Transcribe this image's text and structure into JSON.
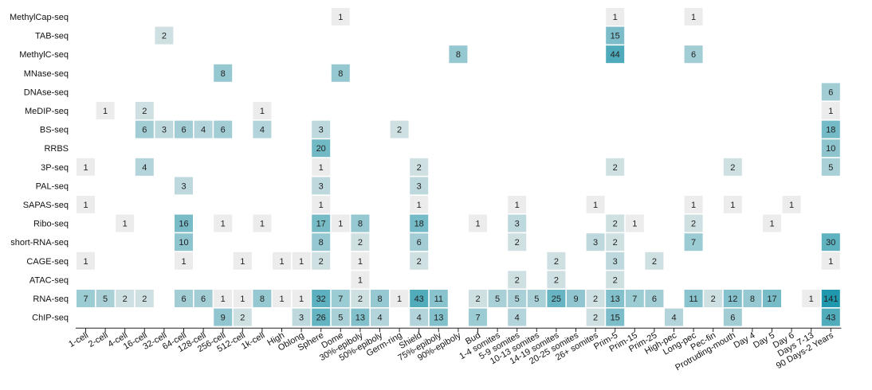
{
  "chart_data": {
    "type": "heatmap",
    "title": "",
    "xlabel": "",
    "ylabel": "",
    "colors": {
      "low": "#ececec",
      "high": "#1f97ac",
      "text": "#222222"
    },
    "rows": [
      "MethylCap-seq",
      "TAB-seq",
      "MethylC-seq",
      "MNase-seq",
      "DNAse-seq",
      "MeDIP-seq",
      "BS-seq",
      "RRBS",
      "3P-seq",
      "PAL-seq",
      "SAPAS-seq",
      "Ribo-seq",
      "short-RNA-seq",
      "CAGE-seq",
      "ATAC-seq",
      "RNA-seq",
      "ChIP-seq"
    ],
    "columns": [
      "1-cell",
      "2-cell",
      "4-cell",
      "16-cell",
      "32-cell",
      "64-cell",
      "128-cell",
      "256-cell",
      "512-cell",
      "1k-cell",
      "High",
      "Oblong",
      "Sphere",
      "Dome",
      "30%-epiboly",
      "50%-epiboly",
      "Germ-ring",
      "Shield",
      "75%-epiboly",
      "90%-epiboly",
      "Bud",
      "1-4 somites",
      "5-9 somites",
      "10-13 somites",
      "14-19 somites",
      "20-25 somites",
      "26+ somites",
      "Prim-5",
      "Prim-15",
      "Prim-25",
      "High-pec",
      "Long-pec",
      "Pec-fin",
      "Protruding-mouth",
      "Day 4",
      "Day 5",
      "Day 6",
      "Days 7-13",
      "90 Days-2 Years"
    ],
    "cells": [
      {
        "row": "MethylCap-seq",
        "col": "Dome",
        "value": 1
      },
      {
        "row": "MethylCap-seq",
        "col": "Prim-5",
        "value": 1
      },
      {
        "row": "MethylCap-seq",
        "col": "Long-pec",
        "value": 1
      },
      {
        "row": "TAB-seq",
        "col": "32-cell",
        "value": 2
      },
      {
        "row": "TAB-seq",
        "col": "Prim-5",
        "value": 15
      },
      {
        "row": "MethylC-seq",
        "col": "90%-epiboly",
        "value": 8
      },
      {
        "row": "MethylC-seq",
        "col": "Prim-5",
        "value": 44
      },
      {
        "row": "MethylC-seq",
        "col": "Long-pec",
        "value": 6
      },
      {
        "row": "MNase-seq",
        "col": "256-cell",
        "value": 8
      },
      {
        "row": "MNase-seq",
        "col": "Dome",
        "value": 8
      },
      {
        "row": "DNAse-seq",
        "col": "90 Days-2 Years",
        "value": 6
      },
      {
        "row": "MeDIP-seq",
        "col": "2-cell",
        "value": 1
      },
      {
        "row": "MeDIP-seq",
        "col": "16-cell",
        "value": 2
      },
      {
        "row": "MeDIP-seq",
        "col": "1k-cell",
        "value": 1
      },
      {
        "row": "MeDIP-seq",
        "col": "90 Days-2 Years",
        "value": 1
      },
      {
        "row": "BS-seq",
        "col": "16-cell",
        "value": 6
      },
      {
        "row": "BS-seq",
        "col": "32-cell",
        "value": 3
      },
      {
        "row": "BS-seq",
        "col": "64-cell",
        "value": 6
      },
      {
        "row": "BS-seq",
        "col": "128-cell",
        "value": 4
      },
      {
        "row": "BS-seq",
        "col": "256-cell",
        "value": 6
      },
      {
        "row": "BS-seq",
        "col": "1k-cell",
        "value": 4
      },
      {
        "row": "BS-seq",
        "col": "Sphere",
        "value": 3
      },
      {
        "row": "BS-seq",
        "col": "Germ-ring",
        "value": 2
      },
      {
        "row": "BS-seq",
        "col": "90 Days-2 Years",
        "value": 18
      },
      {
        "row": "RRBS",
        "col": "Sphere",
        "value": 20
      },
      {
        "row": "RRBS",
        "col": "90 Days-2 Years",
        "value": 10
      },
      {
        "row": "3P-seq",
        "col": "1-cell",
        "value": 1
      },
      {
        "row": "3P-seq",
        "col": "16-cell",
        "value": 4
      },
      {
        "row": "3P-seq",
        "col": "Sphere",
        "value": 1
      },
      {
        "row": "3P-seq",
        "col": "Shield",
        "value": 2
      },
      {
        "row": "3P-seq",
        "col": "Prim-5",
        "value": 2
      },
      {
        "row": "3P-seq",
        "col": "Protruding-mouth",
        "value": 2
      },
      {
        "row": "3P-seq",
        "col": "90 Days-2 Years",
        "value": 5
      },
      {
        "row": "PAL-seq",
        "col": "64-cell",
        "value": 3
      },
      {
        "row": "PAL-seq",
        "col": "Sphere",
        "value": 3
      },
      {
        "row": "PAL-seq",
        "col": "Shield",
        "value": 3
      },
      {
        "row": "SAPAS-seq",
        "col": "1-cell",
        "value": 1
      },
      {
        "row": "SAPAS-seq",
        "col": "Sphere",
        "value": 1
      },
      {
        "row": "SAPAS-seq",
        "col": "Shield",
        "value": 1
      },
      {
        "row": "SAPAS-seq",
        "col": "5-9 somites",
        "value": 1
      },
      {
        "row": "SAPAS-seq",
        "col": "26+ somites",
        "value": 1
      },
      {
        "row": "SAPAS-seq",
        "col": "Long-pec",
        "value": 1
      },
      {
        "row": "SAPAS-seq",
        "col": "Protruding-mouth",
        "value": 1
      },
      {
        "row": "SAPAS-seq",
        "col": "Day 6",
        "value": 1
      },
      {
        "row": "Ribo-seq",
        "col": "4-cell",
        "value": 1
      },
      {
        "row": "Ribo-seq",
        "col": "64-cell",
        "value": 16
      },
      {
        "row": "Ribo-seq",
        "col": "256-cell",
        "value": 1
      },
      {
        "row": "Ribo-seq",
        "col": "1k-cell",
        "value": 1
      },
      {
        "row": "Ribo-seq",
        "col": "Sphere",
        "value": 17
      },
      {
        "row": "Ribo-seq",
        "col": "Dome",
        "value": 1
      },
      {
        "row": "Ribo-seq",
        "col": "30%-epiboly",
        "value": 8
      },
      {
        "row": "Ribo-seq",
        "col": "Shield",
        "value": 18
      },
      {
        "row": "Ribo-seq",
        "col": "Bud",
        "value": 1
      },
      {
        "row": "Ribo-seq",
        "col": "5-9 somites",
        "value": 3
      },
      {
        "row": "Ribo-seq",
        "col": "Prim-5",
        "value": 2
      },
      {
        "row": "Ribo-seq",
        "col": "Prim-15",
        "value": 1
      },
      {
        "row": "Ribo-seq",
        "col": "Long-pec",
        "value": 2
      },
      {
        "row": "Ribo-seq",
        "col": "Day 5",
        "value": 1
      },
      {
        "row": "short-RNA-seq",
        "col": "64-cell",
        "value": 10
      },
      {
        "row": "short-RNA-seq",
        "col": "Sphere",
        "value": 8
      },
      {
        "row": "short-RNA-seq",
        "col": "30%-epiboly",
        "value": 2
      },
      {
        "row": "short-RNA-seq",
        "col": "Shield",
        "value": 6
      },
      {
        "row": "short-RNA-seq",
        "col": "5-9 somites",
        "value": 2
      },
      {
        "row": "short-RNA-seq",
        "col": "26+ somites",
        "value": 3
      },
      {
        "row": "short-RNA-seq",
        "col": "Prim-5",
        "value": 2
      },
      {
        "row": "short-RNA-seq",
        "col": "Long-pec",
        "value": 7
      },
      {
        "row": "short-RNA-seq",
        "col": "90 Days-2 Years",
        "value": 30
      },
      {
        "row": "CAGE-seq",
        "col": "1-cell",
        "value": 1
      },
      {
        "row": "CAGE-seq",
        "col": "64-cell",
        "value": 1
      },
      {
        "row": "CAGE-seq",
        "col": "512-cell",
        "value": 1
      },
      {
        "row": "CAGE-seq",
        "col": "High",
        "value": 1
      },
      {
        "row": "CAGE-seq",
        "col": "Oblong",
        "value": 1
      },
      {
        "row": "CAGE-seq",
        "col": "Sphere",
        "value": 2
      },
      {
        "row": "CAGE-seq",
        "col": "30%-epiboly",
        "value": 1
      },
      {
        "row": "CAGE-seq",
        "col": "Shield",
        "value": 2
      },
      {
        "row": "CAGE-seq",
        "col": "14-19 somites",
        "value": 2
      },
      {
        "row": "CAGE-seq",
        "col": "Prim-5",
        "value": 3
      },
      {
        "row": "CAGE-seq",
        "col": "Prim-25",
        "value": 2
      },
      {
        "row": "CAGE-seq",
        "col": "90 Days-2 Years",
        "value": 1
      },
      {
        "row": "ATAC-seq",
        "col": "30%-epiboly",
        "value": 1
      },
      {
        "row": "ATAC-seq",
        "col": "5-9 somites",
        "value": 2
      },
      {
        "row": "ATAC-seq",
        "col": "14-19 somites",
        "value": 2
      },
      {
        "row": "ATAC-seq",
        "col": "Prim-5",
        "value": 2
      },
      {
        "row": "RNA-seq",
        "col": "1-cell",
        "value": 7
      },
      {
        "row": "RNA-seq",
        "col": "2-cell",
        "value": 5
      },
      {
        "row": "RNA-seq",
        "col": "4-cell",
        "value": 2
      },
      {
        "row": "RNA-seq",
        "col": "16-cell",
        "value": 2
      },
      {
        "row": "RNA-seq",
        "col": "64-cell",
        "value": 6
      },
      {
        "row": "RNA-seq",
        "col": "128-cell",
        "value": 6
      },
      {
        "row": "RNA-seq",
        "col": "256-cell",
        "value": 1
      },
      {
        "row": "RNA-seq",
        "col": "512-cell",
        "value": 1
      },
      {
        "row": "RNA-seq",
        "col": "1k-cell",
        "value": 8
      },
      {
        "row": "RNA-seq",
        "col": "High",
        "value": 1
      },
      {
        "row": "RNA-seq",
        "col": "Oblong",
        "value": 1
      },
      {
        "row": "RNA-seq",
        "col": "Sphere",
        "value": 32
      },
      {
        "row": "RNA-seq",
        "col": "Dome",
        "value": 7
      },
      {
        "row": "RNA-seq",
        "col": "30%-epiboly",
        "value": 2
      },
      {
        "row": "RNA-seq",
        "col": "50%-epiboly",
        "value": 8
      },
      {
        "row": "RNA-seq",
        "col": "Germ-ring",
        "value": 1
      },
      {
        "row": "RNA-seq",
        "col": "Shield",
        "value": 43
      },
      {
        "row": "RNA-seq",
        "col": "75%-epiboly",
        "value": 11
      },
      {
        "row": "RNA-seq",
        "col": "Bud",
        "value": 2
      },
      {
        "row": "RNA-seq",
        "col": "1-4 somites",
        "value": 5
      },
      {
        "row": "RNA-seq",
        "col": "5-9 somites",
        "value": 5
      },
      {
        "row": "RNA-seq",
        "col": "10-13 somites",
        "value": 5
      },
      {
        "row": "RNA-seq",
        "col": "14-19 somites",
        "value": 25
      },
      {
        "row": "RNA-seq",
        "col": "20-25 somites",
        "value": 9
      },
      {
        "row": "RNA-seq",
        "col": "26+ somites",
        "value": 2
      },
      {
        "row": "RNA-seq",
        "col": "Prim-5",
        "value": 13
      },
      {
        "row": "RNA-seq",
        "col": "Prim-15",
        "value": 7
      },
      {
        "row": "RNA-seq",
        "col": "Prim-25",
        "value": 6
      },
      {
        "row": "RNA-seq",
        "col": "Long-pec",
        "value": 11
      },
      {
        "row": "RNA-seq",
        "col": "Pec-fin",
        "value": 2
      },
      {
        "row": "RNA-seq",
        "col": "Protruding-mouth",
        "value": 12
      },
      {
        "row": "RNA-seq",
        "col": "Day 4",
        "value": 8
      },
      {
        "row": "RNA-seq",
        "col": "Day 5",
        "value": 17
      },
      {
        "row": "RNA-seq",
        "col": "Days 7-13",
        "value": 1
      },
      {
        "row": "RNA-seq",
        "col": "90 Days-2 Years",
        "value": 141
      },
      {
        "row": "ChIP-seq",
        "col": "256-cell",
        "value": 9
      },
      {
        "row": "ChIP-seq",
        "col": "512-cell",
        "value": 2
      },
      {
        "row": "ChIP-seq",
        "col": "Oblong",
        "value": 3
      },
      {
        "row": "ChIP-seq",
        "col": "Sphere",
        "value": 26
      },
      {
        "row": "ChIP-seq",
        "col": "Dome",
        "value": 5
      },
      {
        "row": "ChIP-seq",
        "col": "30%-epiboly",
        "value": 13
      },
      {
        "row": "ChIP-seq",
        "col": "50%-epiboly",
        "value": 4
      },
      {
        "row": "ChIP-seq",
        "col": "Shield",
        "value": 4
      },
      {
        "row": "ChIP-seq",
        "col": "75%-epiboly",
        "value": 13
      },
      {
        "row": "ChIP-seq",
        "col": "Bud",
        "value": 7
      },
      {
        "row": "ChIP-seq",
        "col": "5-9 somites",
        "value": 4
      },
      {
        "row": "ChIP-seq",
        "col": "26+ somites",
        "value": 2
      },
      {
        "row": "ChIP-seq",
        "col": "Prim-5",
        "value": 15
      },
      {
        "row": "ChIP-seq",
        "col": "High-pec",
        "value": 4
      },
      {
        "row": "ChIP-seq",
        "col": "Protruding-mouth",
        "value": 6
      },
      {
        "row": "ChIP-seq",
        "col": "90 Days-2 Years",
        "value": 43
      }
    ]
  }
}
